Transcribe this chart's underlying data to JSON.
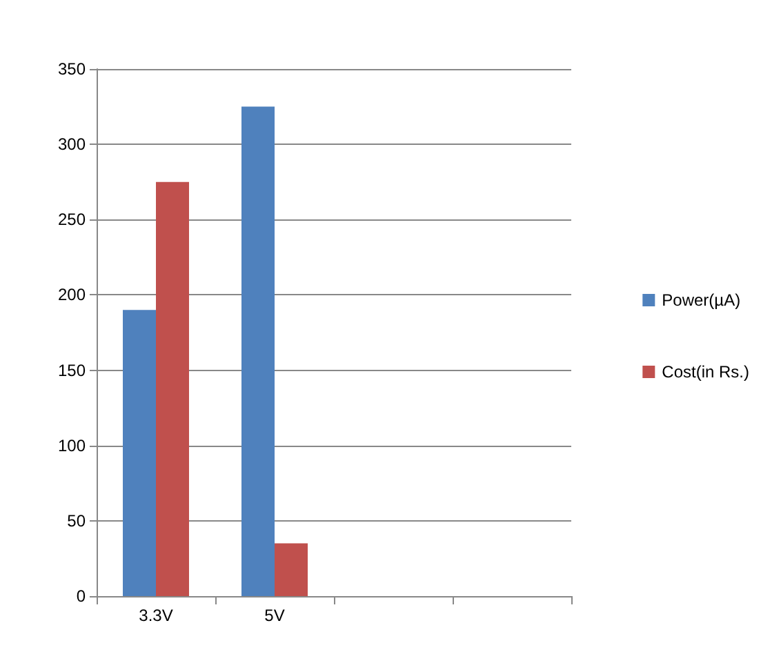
{
  "chart_data": {
    "type": "bar",
    "categories": [
      "3.3V",
      "5V",
      null,
      null
    ],
    "series": [
      {
        "name": "Power(µA)",
        "color": "#4f81bd",
        "values": [
          190,
          325,
          null,
          null
        ]
      },
      {
        "name": "Cost(in Rs.)",
        "color": "#c0504d",
        "values": [
          275,
          35,
          null,
          null
        ]
      }
    ],
    "ylim": [
      0,
      350
    ],
    "yticks": [
      0,
      50,
      100,
      150,
      200,
      250,
      300,
      350
    ],
    "grid": "y",
    "legend": "right"
  }
}
